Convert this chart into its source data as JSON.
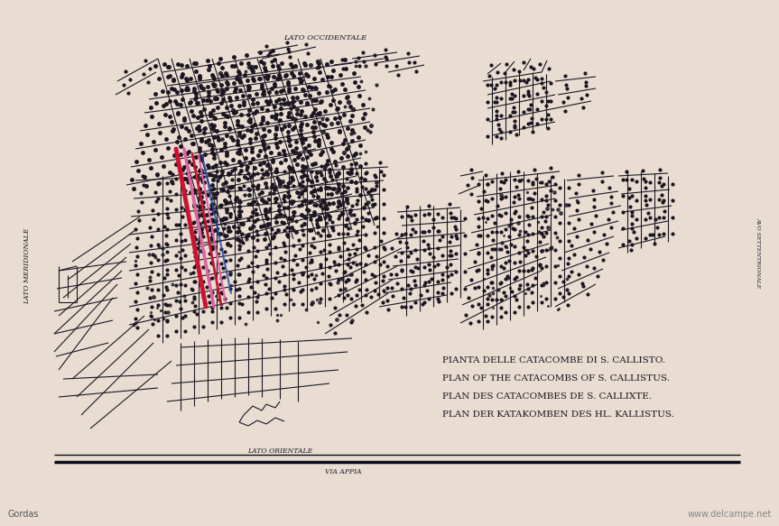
{
  "bg_color": "#e8ddd0",
  "card_bg": "#ece3d4",
  "border_color": "#b8a888",
  "map_line_color": "#1a1825",
  "red_line_color": "#cc1133",
  "pink_line_color": "#e060a0",
  "blue_line_color": "#2244aa",
  "dot_color": "#1a1520",
  "title_lines": [
    "PIANTA DELLE CATACOMBE DI S. CALLISTO.",
    "PLAN OF THE CATACOMBS OF S. CALLISTUS.",
    "PLAN DES CATACOMBES DE S. CALLIXTE.",
    "PLAN DER KATAKOMBEN DES HL. KALLISTUS."
  ],
  "label_top": "LATO OCCIDENTALE",
  "label_left": "LATO MERIDIONALE",
  "label_right": "AVO SETTENTRIONALE",
  "label_bottom_left": "LATO ORIENTALE",
  "label_via": "VIA APPIA",
  "watermark_left": "Gordas",
  "watermark_right": "www.delcampe.net",
  "title_fontsize": 7.5,
  "label_fontsize": 5.5,
  "figsize": [
    8.63,
    5.83
  ],
  "dpi": 100
}
